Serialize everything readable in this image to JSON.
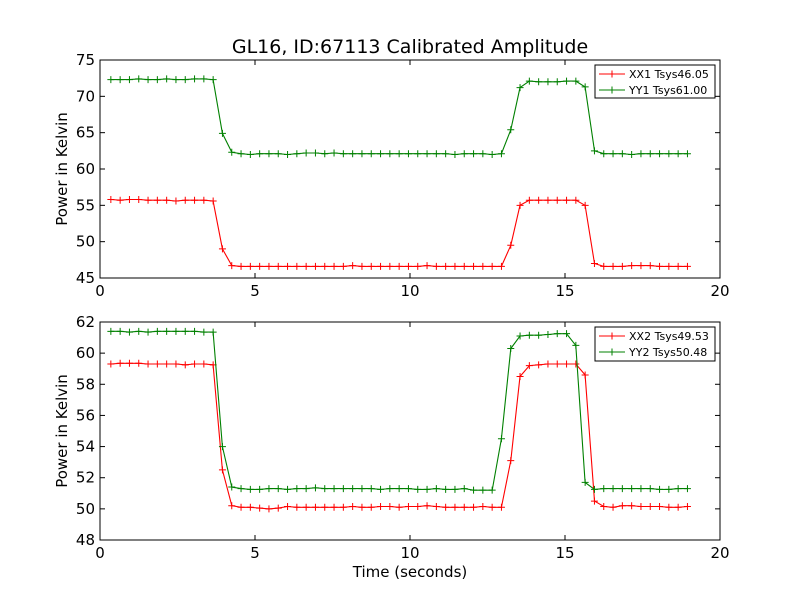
{
  "figure": {
    "title": "GL16, ID:67113 Calibrated Amplitude"
  },
  "chart_data": [
    {
      "type": "line",
      "title": "GL16, ID:67113 Calibrated Amplitude",
      "xlabel": "",
      "ylabel": "Power in Kelvin",
      "xlim": [
        0,
        20
      ],
      "ylim": [
        45,
        75
      ],
      "xticks": [
        0,
        5,
        10,
        15,
        20
      ],
      "yticks": [
        45,
        50,
        55,
        60,
        65,
        70,
        75
      ],
      "grid": false,
      "legend_placement": "top-right",
      "x": [
        0.35,
        0.65,
        0.95,
        1.25,
        1.55,
        1.85,
        2.15,
        2.45,
        2.75,
        3.05,
        3.35,
        3.65,
        3.95,
        4.25,
        4.55,
        4.85,
        5.15,
        5.45,
        5.75,
        6.05,
        6.35,
        6.65,
        6.95,
        7.25,
        7.55,
        7.85,
        8.15,
        8.45,
        8.75,
        9.05,
        9.35,
        9.65,
        9.95,
        10.25,
        10.55,
        10.85,
        11.15,
        11.45,
        11.75,
        12.05,
        12.35,
        12.65,
        12.95,
        13.25,
        13.55,
        13.85,
        14.15,
        14.45,
        14.75,
        15.05,
        15.35,
        15.65,
        15.95,
        16.25,
        16.55,
        16.85,
        17.15,
        17.45,
        17.75,
        18.05,
        18.35,
        18.65,
        18.95
      ],
      "series": [
        {
          "name": "XX1 Tsys46.05",
          "color": "#ff0000",
          "values": [
            55.8,
            55.7,
            55.8,
            55.8,
            55.7,
            55.7,
            55.7,
            55.6,
            55.7,
            55.7,
            55.7,
            55.6,
            49.0,
            46.7,
            46.6,
            46.6,
            46.6,
            46.6,
            46.6,
            46.6,
            46.6,
            46.6,
            46.6,
            46.6,
            46.6,
            46.6,
            46.7,
            46.6,
            46.6,
            46.6,
            46.6,
            46.6,
            46.6,
            46.6,
            46.7,
            46.6,
            46.6,
            46.6,
            46.6,
            46.6,
            46.6,
            46.6,
            46.6,
            49.5,
            55.0,
            55.7,
            55.7,
            55.7,
            55.7,
            55.7,
            55.7,
            55.0,
            47.0,
            46.6,
            46.6,
            46.6,
            46.7,
            46.7,
            46.7,
            46.6,
            46.6,
            46.6,
            46.6
          ]
        },
        {
          "name": "YY1 Tsys61.00",
          "color": "#008000",
          "values": [
            72.3,
            72.3,
            72.3,
            72.4,
            72.3,
            72.3,
            72.4,
            72.3,
            72.3,
            72.4,
            72.4,
            72.3,
            64.9,
            62.3,
            62.1,
            62.0,
            62.1,
            62.1,
            62.1,
            62.0,
            62.1,
            62.2,
            62.2,
            62.1,
            62.2,
            62.1,
            62.1,
            62.1,
            62.1,
            62.1,
            62.1,
            62.1,
            62.1,
            62.1,
            62.1,
            62.1,
            62.1,
            62.0,
            62.1,
            62.1,
            62.1,
            62.0,
            62.1,
            65.4,
            71.2,
            72.1,
            72.0,
            72.0,
            72.0,
            72.1,
            72.1,
            71.3,
            62.5,
            62.1,
            62.1,
            62.1,
            62.0,
            62.1,
            62.1,
            62.1,
            62.1,
            62.1,
            62.1
          ]
        }
      ]
    },
    {
      "type": "line",
      "title": "",
      "xlabel": "Time (seconds)",
      "ylabel": "Power in Kelvin",
      "xlim": [
        0,
        20
      ],
      "ylim": [
        48,
        62
      ],
      "xticks": [
        0,
        5,
        10,
        15,
        20
      ],
      "yticks": [
        48,
        50,
        52,
        54,
        56,
        58,
        60,
        62
      ],
      "grid": false,
      "legend_placement": "top-right",
      "x": [
        0.35,
        0.65,
        0.95,
        1.25,
        1.55,
        1.85,
        2.15,
        2.45,
        2.75,
        3.05,
        3.35,
        3.65,
        3.95,
        4.25,
        4.55,
        4.85,
        5.15,
        5.45,
        5.75,
        6.05,
        6.35,
        6.65,
        6.95,
        7.25,
        7.55,
        7.85,
        8.15,
        8.45,
        8.75,
        9.05,
        9.35,
        9.65,
        9.95,
        10.25,
        10.55,
        10.85,
        11.15,
        11.45,
        11.75,
        12.05,
        12.35,
        12.65,
        12.95,
        13.25,
        13.55,
        13.85,
        14.15,
        14.45,
        14.75,
        15.05,
        15.35,
        15.65,
        15.95,
        16.25,
        16.55,
        16.85,
        17.15,
        17.45,
        17.75,
        18.05,
        18.35,
        18.65,
        18.95
      ],
      "series": [
        {
          "name": "XX2 Tsys49.53",
          "color": "#ff0000",
          "values": [
            59.3,
            59.35,
            59.35,
            59.35,
            59.3,
            59.3,
            59.3,
            59.3,
            59.25,
            59.3,
            59.3,
            59.25,
            52.5,
            50.2,
            50.1,
            50.1,
            50.05,
            50.0,
            50.05,
            50.15,
            50.1,
            50.1,
            50.1,
            50.1,
            50.1,
            50.1,
            50.15,
            50.1,
            50.1,
            50.15,
            50.15,
            50.1,
            50.15,
            50.15,
            50.2,
            50.15,
            50.1,
            50.1,
            50.1,
            50.1,
            50.15,
            50.1,
            50.1,
            53.1,
            58.5,
            59.2,
            59.25,
            59.3,
            59.3,
            59.3,
            59.3,
            58.6,
            50.5,
            50.15,
            50.1,
            50.2,
            50.2,
            50.15,
            50.15,
            50.15,
            50.1,
            50.1,
            50.15
          ]
        },
        {
          "name": "YY2 Tsys50.48",
          "color": "#008000",
          "values": [
            61.4,
            61.4,
            61.35,
            61.4,
            61.35,
            61.4,
            61.4,
            61.4,
            61.4,
            61.4,
            61.35,
            61.35,
            54.0,
            51.4,
            51.3,
            51.25,
            51.25,
            51.3,
            51.3,
            51.25,
            51.3,
            51.3,
            51.35,
            51.3,
            51.3,
            51.3,
            51.3,
            51.3,
            51.3,
            51.25,
            51.3,
            51.3,
            51.3,
            51.25,
            51.25,
            51.3,
            51.25,
            51.25,
            51.3,
            51.2,
            51.2,
            51.2,
            54.5,
            60.3,
            61.1,
            61.15,
            61.15,
            61.2,
            61.25,
            61.25,
            60.5,
            51.7,
            51.25,
            51.3,
            51.3,
            51.3,
            51.3,
            51.3,
            51.3,
            51.25,
            51.25,
            51.3,
            51.3
          ]
        }
      ]
    }
  ]
}
